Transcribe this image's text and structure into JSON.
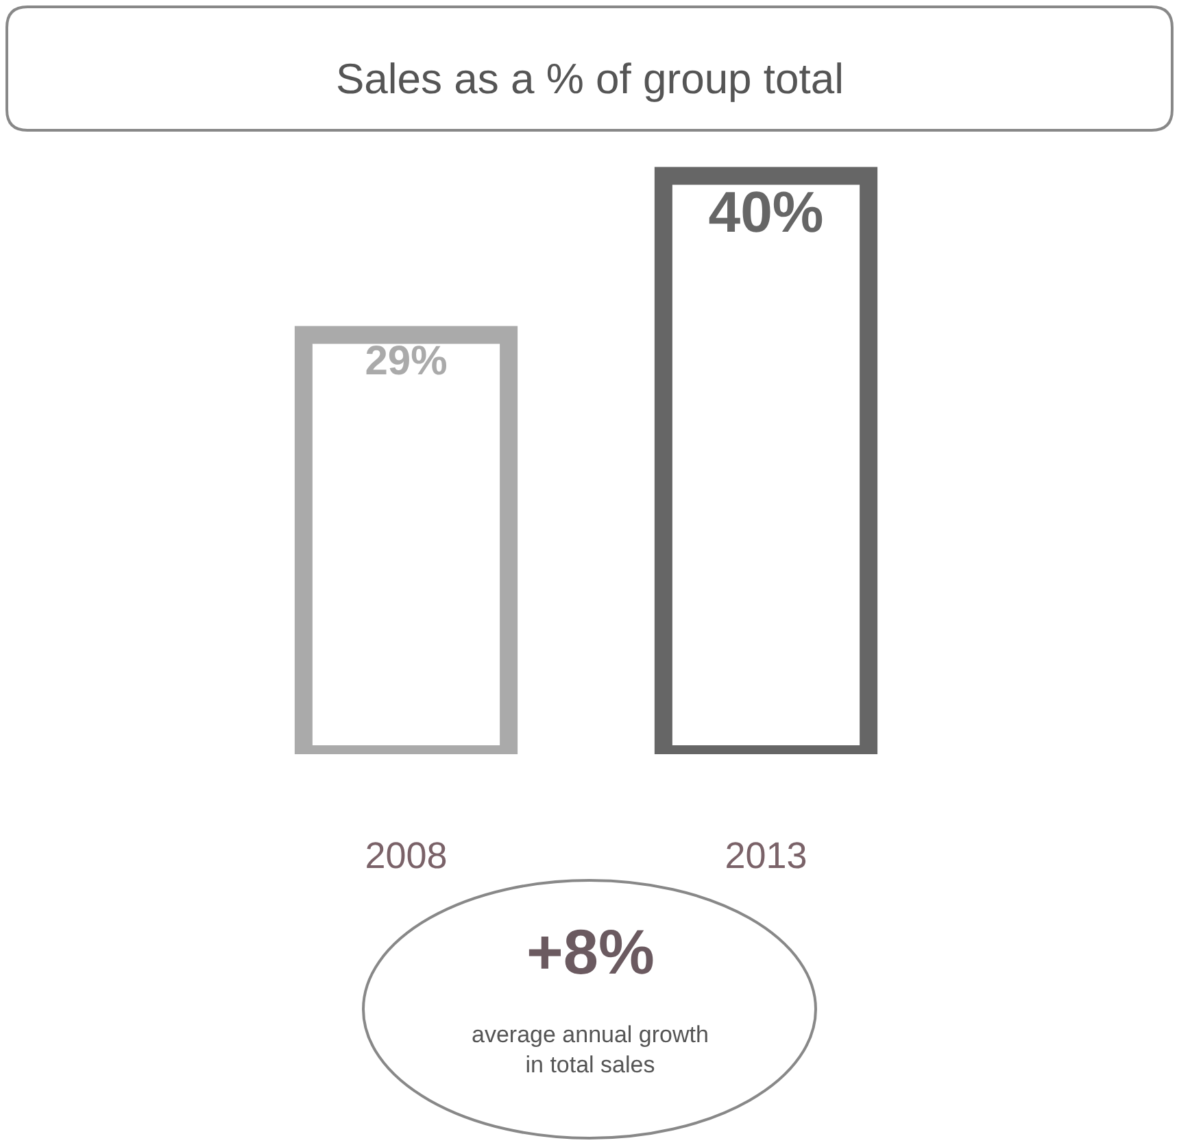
{
  "chart_data": {
    "type": "bar",
    "title": "Sales as a % of group total",
    "categories": [
      "2008",
      "2013"
    ],
    "values": [
      29,
      40
    ],
    "colors": [
      "#aaaaaa",
      "#666666"
    ],
    "value_labels": [
      "29%",
      "40%"
    ],
    "annotations": [
      "+8%",
      "average annual growth\nin total sales"
    ],
    "legend": false
  }
}
